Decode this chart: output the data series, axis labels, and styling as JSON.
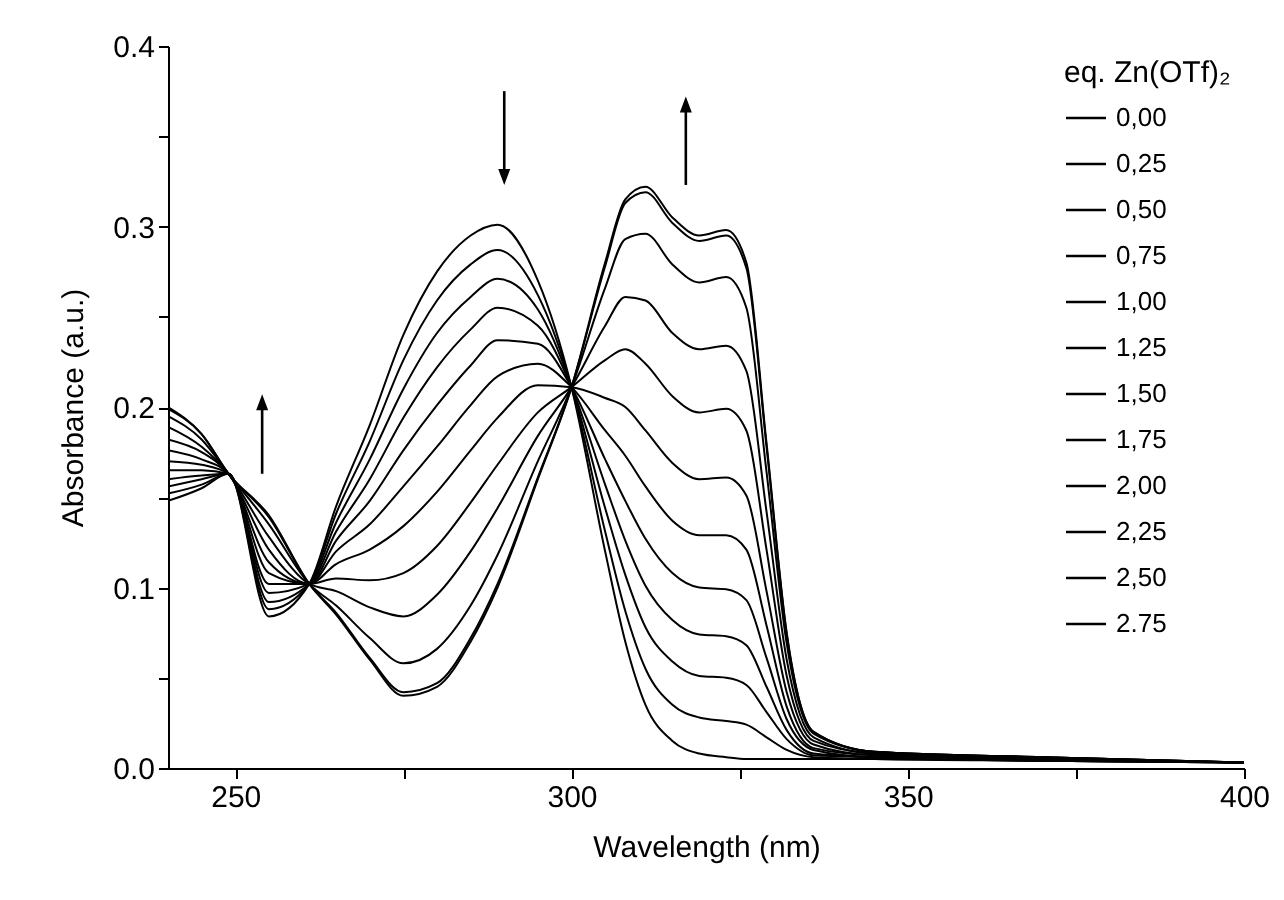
{
  "chart_data": {
    "type": "line",
    "xlabel": "Wavelength (nm)",
    "ylabel": "Absorbance (a.u.)",
    "legend_title": "eq. Zn(OTf)₂",
    "legend": "top right",
    "grid": false,
    "xlim": [
      240,
      400
    ],
    "xticks": [
      250,
      {
        "value": 275,
        "label": null
      },
      300,
      {
        "value": 325,
        "label": null
      },
      350,
      {
        "value": 375,
        "label": null
      },
      400
    ],
    "ylim": [
      0,
      0.4
    ],
    "yticks": [
      {
        "value": 0,
        "label": "0.0"
      },
      {
        "value": 0.05,
        "label": null
      },
      0.1,
      {
        "value": 0.15,
        "label": null
      },
      0.2,
      {
        "value": 0.25,
        "label": null
      },
      0.3,
      {
        "value": 0.35,
        "label": null
      },
      0.4
    ],
    "x": [
      240,
      245,
      249,
      255,
      261,
      265,
      270,
      275,
      280,
      285,
      289,
      295,
      300,
      305,
      308,
      311,
      315,
      319,
      323,
      326,
      329,
      332,
      336,
      345,
      370,
      400
    ],
    "series": [
      {
        "name": "0,00",
        "color": "#000000",
        "values": [
          0.148,
          0.155,
          0.163,
          0.084,
          0.102,
          0.145,
          0.19,
          0.24,
          0.275,
          0.295,
          0.301,
          0.27,
          0.211,
          0.12,
          0.07,
          0.035,
          0.015,
          0.008,
          0.006,
          0.005,
          0.005,
          0.005,
          0.005,
          0.005,
          0.004,
          0.003
        ]
      },
      {
        "name": "0,25",
        "color": "#000000",
        "values": [
          0.152,
          0.157,
          0.163,
          0.088,
          0.102,
          0.141,
          0.181,
          0.226,
          0.259,
          0.279,
          0.287,
          0.262,
          0.211,
          0.131,
          0.087,
          0.055,
          0.035,
          0.028,
          0.026,
          0.024,
          0.017,
          0.01,
          0.006,
          0.005,
          0.004,
          0.003
        ]
      },
      {
        "name": "0,50",
        "color": "#000000",
        "values": [
          0.156,
          0.16,
          0.163,
          0.092,
          0.102,
          0.136,
          0.171,
          0.21,
          0.241,
          0.261,
          0.271,
          0.254,
          0.211,
          0.144,
          0.107,
          0.078,
          0.059,
          0.051,
          0.05,
          0.046,
          0.031,
          0.016,
          0.007,
          0.006,
          0.004,
          0.003
        ]
      },
      {
        "name": "0,75",
        "color": "#000000",
        "values": [
          0.16,
          0.162,
          0.163,
          0.097,
          0.102,
          0.131,
          0.16,
          0.194,
          0.222,
          0.243,
          0.255,
          0.245,
          0.211,
          0.157,
          0.126,
          0.101,
          0.082,
          0.074,
          0.073,
          0.068,
          0.045,
          0.021,
          0.008,
          0.006,
          0.004,
          0.003
        ]
      },
      {
        "name": "1,00",
        "color": "#000000",
        "values": [
          0.165,
          0.165,
          0.163,
          0.102,
          0.102,
          0.126,
          0.148,
          0.176,
          0.201,
          0.223,
          0.237,
          0.235,
          0.211,
          0.171,
          0.148,
          0.127,
          0.108,
          0.1,
          0.099,
          0.093,
          0.061,
          0.027,
          0.01,
          0.006,
          0.005,
          0.003
        ]
      },
      {
        "name": "1,25",
        "color": "#000000",
        "values": [
          0.17,
          0.168,
          0.163,
          0.108,
          0.102,
          0.12,
          0.135,
          0.156,
          0.178,
          0.201,
          0.217,
          0.224,
          0.211,
          0.187,
          0.173,
          0.156,
          0.137,
          0.129,
          0.129,
          0.121,
          0.079,
          0.034,
          0.011,
          0.007,
          0.005,
          0.003
        ]
      },
      {
        "name": "1,50",
        "color": "#000000",
        "values": [
          0.176,
          0.171,
          0.163,
          0.114,
          0.102,
          0.113,
          0.121,
          0.134,
          0.153,
          0.176,
          0.194,
          0.212,
          0.211,
          0.205,
          0.2,
          0.187,
          0.169,
          0.16,
          0.161,
          0.151,
          0.098,
          0.042,
          0.013,
          0.007,
          0.005,
          0.003
        ]
      },
      {
        "name": "1,75",
        "color": "#000000",
        "values": [
          0.182,
          0.175,
          0.163,
          0.121,
          0.102,
          0.105,
          0.104,
          0.108,
          0.123,
          0.147,
          0.168,
          0.197,
          0.211,
          0.226,
          0.232,
          0.224,
          0.206,
          0.197,
          0.199,
          0.187,
          0.121,
          0.051,
          0.015,
          0.008,
          0.005,
          0.003
        ]
      },
      {
        "name": "2,00",
        "color": "#000000",
        "values": [
          0.189,
          0.178,
          0.163,
          0.128,
          0.102,
          0.098,
          0.089,
          0.084,
          0.096,
          0.12,
          0.144,
          0.184,
          0.211,
          0.245,
          0.261,
          0.259,
          0.241,
          0.232,
          0.234,
          0.22,
          0.142,
          0.06,
          0.017,
          0.008,
          0.006,
          0.003
        ]
      },
      {
        "name": "2,25",
        "color": "#000000",
        "values": [
          0.195,
          0.182,
          0.163,
          0.135,
          0.102,
          0.09,
          0.072,
          0.058,
          0.066,
          0.09,
          0.118,
          0.17,
          0.211,
          0.266,
          0.293,
          0.296,
          0.279,
          0.269,
          0.272,
          0.255,
          0.164,
          0.069,
          0.019,
          0.009,
          0.006,
          0.003
        ]
      },
      {
        "name": "2,50",
        "color": "#000000",
        "values": [
          0.199,
          0.185,
          0.163,
          0.139,
          0.102,
          0.086,
          0.061,
          0.042,
          0.047,
          0.072,
          0.102,
          0.161,
          0.211,
          0.278,
          0.313,
          0.319,
          0.302,
          0.292,
          0.295,
          0.277,
          0.178,
          0.074,
          0.02,
          0.009,
          0.006,
          0.003
        ]
      },
      {
        "name": "2.75",
        "color": "#000000",
        "values": [
          0.2,
          0.185,
          0.163,
          0.14,
          0.102,
          0.085,
          0.06,
          0.04,
          0.045,
          0.07,
          0.1,
          0.16,
          0.211,
          0.28,
          0.315,
          0.322,
          0.305,
          0.295,
          0.298,
          0.28,
          0.18,
          0.075,
          0.02,
          0.009,
          0.006,
          0.003
        ]
      }
    ]
  }
}
